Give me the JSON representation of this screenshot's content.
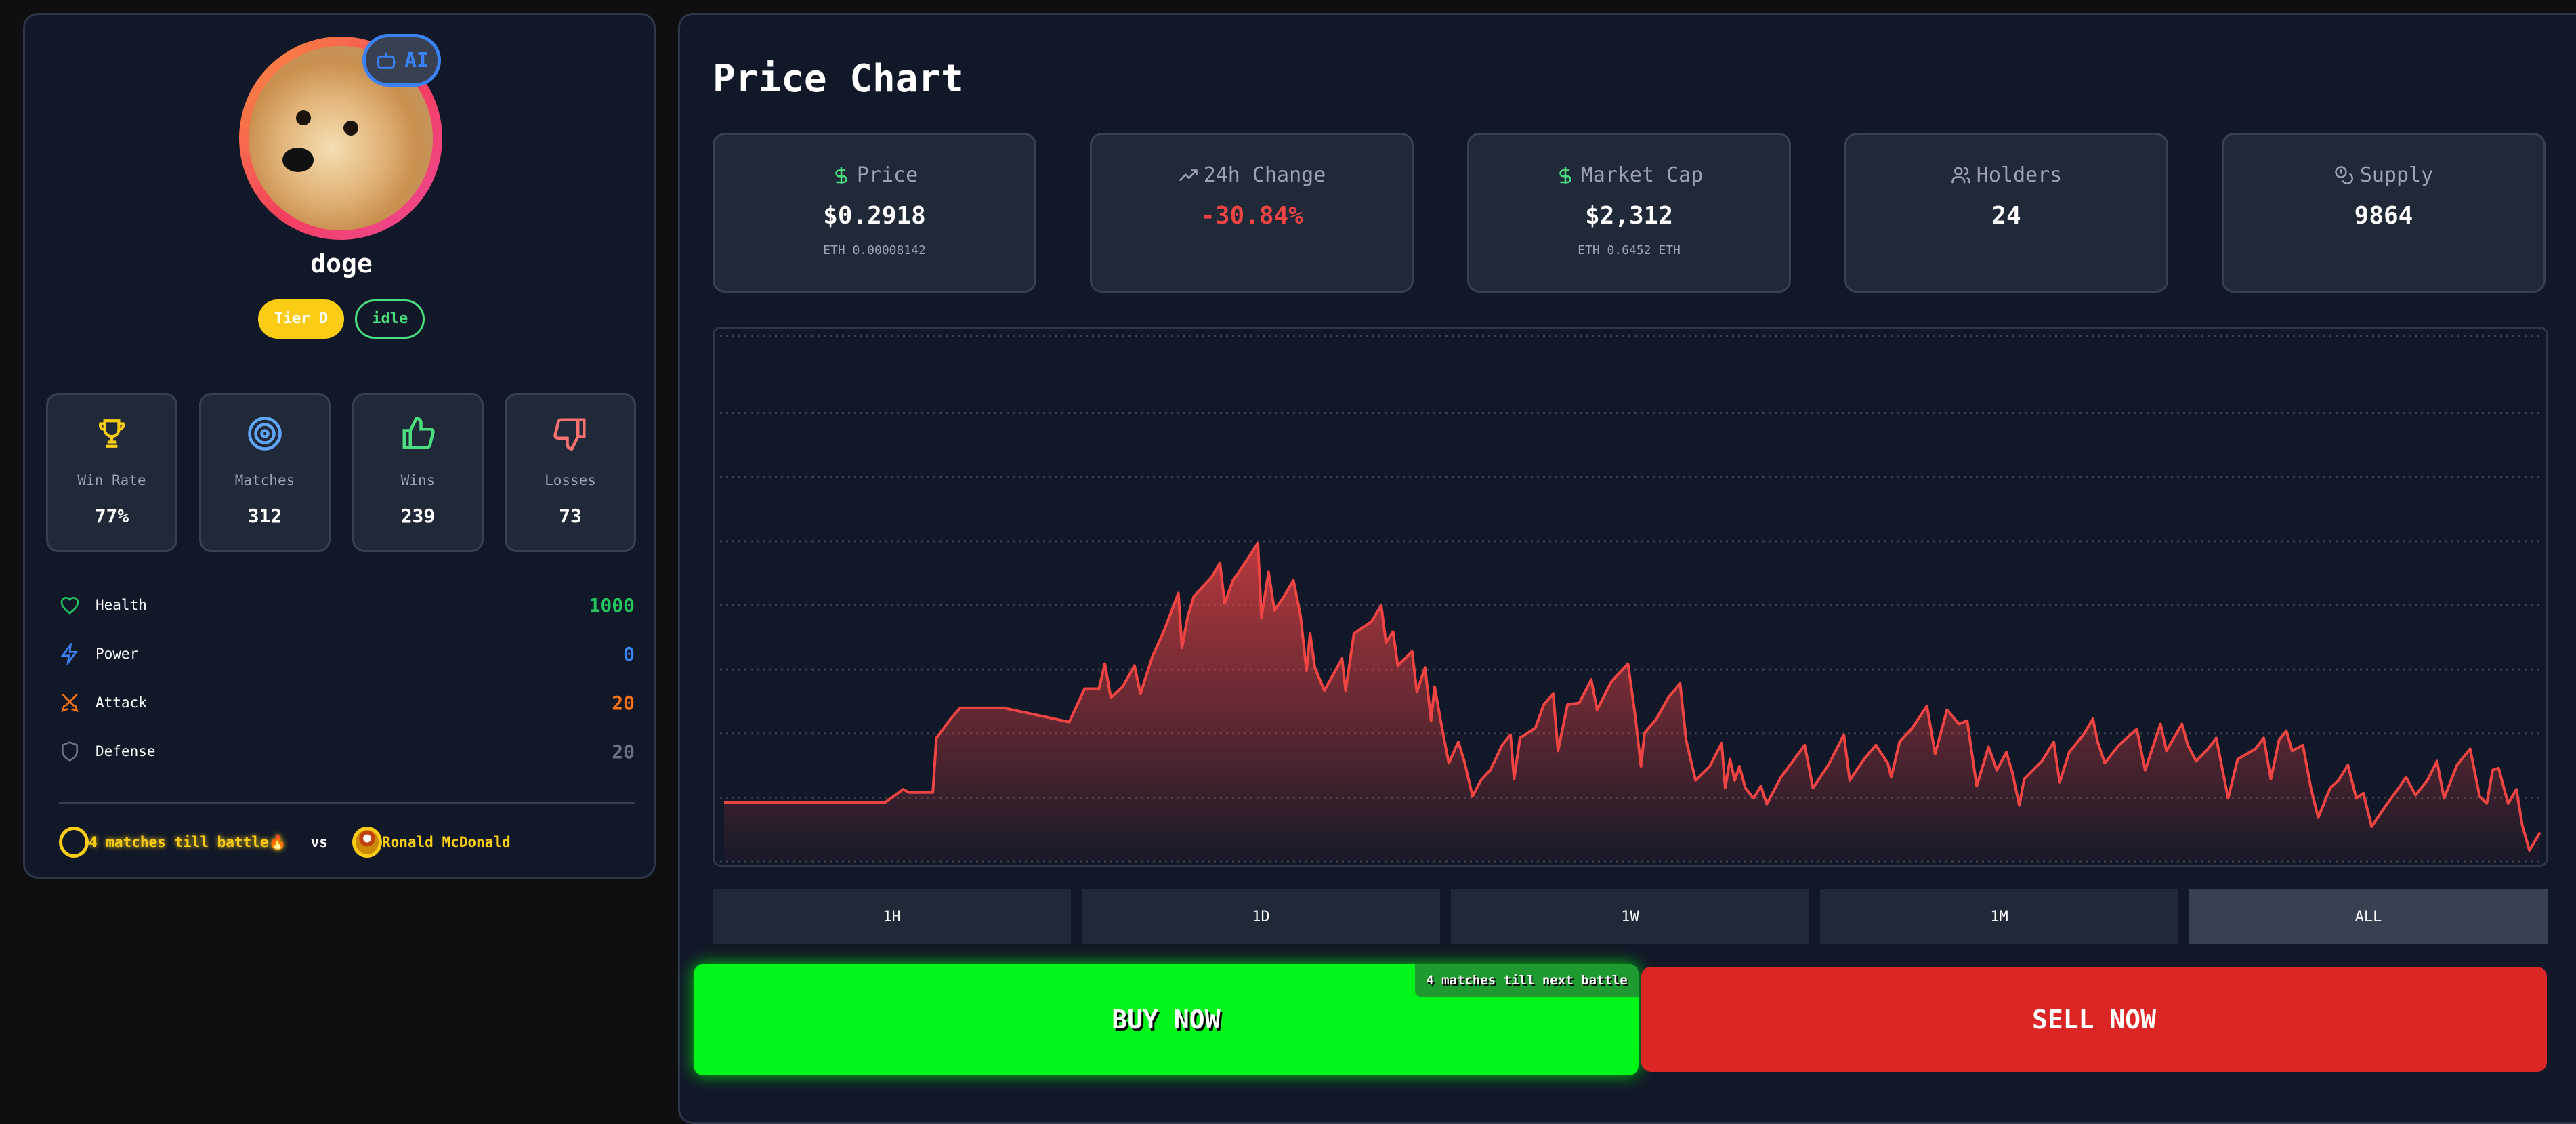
{
  "profile": {
    "name": "doge",
    "ai_badge": "AI",
    "tier": "Tier D",
    "status": "idle"
  },
  "stats": [
    {
      "label": "Win Rate",
      "value": "77%",
      "icon": "trophy-icon",
      "color": "#facc15"
    },
    {
      "label": "Matches",
      "value": "312",
      "icon": "target-icon",
      "color": "#60a5fa"
    },
    {
      "label": "Wins",
      "value": "239",
      "icon": "thumbs-up-icon",
      "color": "#4ade80"
    },
    {
      "label": "Losses",
      "value": "73",
      "icon": "thumbs-down-icon",
      "color": "#f87171"
    }
  ],
  "attributes": [
    {
      "label": "Health",
      "value": "1000",
      "icon": "heart-icon",
      "color": "#22c55e"
    },
    {
      "label": "Power",
      "value": "0",
      "icon": "lightning-icon",
      "color": "#3b82f6"
    },
    {
      "label": "Attack",
      "value": "20",
      "icon": "swords-icon",
      "color": "#f97316"
    },
    {
      "label": "Defense",
      "value": "20",
      "icon": "shield-icon",
      "color": "#6b7280"
    }
  ],
  "battle": {
    "countdown": "4 matches till battle🔥",
    "vs": "vs",
    "opponent": "Ronald McDonald"
  },
  "chart_panel": {
    "title": "Price Chart"
  },
  "metrics": [
    {
      "label": "Price",
      "value": "$0.2918",
      "sub": "ETH 0.00008142",
      "icon": "dollar-icon",
      "color": "#fff"
    },
    {
      "label": "24h Change",
      "value": "-30.84%",
      "sub": "",
      "icon": "trending-up-icon",
      "color": "#ef4444"
    },
    {
      "label": "Market Cap",
      "value": "$2,312",
      "sub": "ETH 0.6452 ETH",
      "icon": "dollar-icon",
      "color": "#fff"
    },
    {
      "label": "Holders",
      "value": "24",
      "sub": "",
      "icon": "users-icon",
      "color": "#fff"
    },
    {
      "label": "Supply",
      "value": "9864",
      "sub": "",
      "icon": "coins-icon",
      "color": "#fff"
    }
  ],
  "timeframes": [
    "1H",
    "1D",
    "1W",
    "1M",
    "ALL"
  ],
  "active_timeframe": "ALL",
  "actions": {
    "buy": "BUY NOW",
    "sell": "SELL NOW",
    "next_battle": "4 matches till next battle"
  },
  "chart_data": {
    "type": "area",
    "title": "",
    "xlabel": "",
    "ylabel": "",
    "grid": true,
    "ylim": [
      0,
      8.2
    ],
    "color": "#ef4444",
    "x": [
      0,
      136,
      151,
      156,
      176,
      179,
      191,
      199,
      236,
      291,
      304,
      316,
      321,
      326,
      336,
      346,
      351,
      361,
      371,
      383,
      386,
      391,
      396,
      411,
      418,
      422,
      429,
      434,
      450,
      453,
      459,
      464,
      471,
      480,
      486,
      491,
      494,
      498,
      506,
      521,
      524,
      531,
      546,
      554,
      558,
      564,
      568,
      580,
      584,
      591,
      596,
      599,
      606,
      611,
      619,
      624,
      631,
      638,
      646,
      656,
      663,
      666,
      671,
      684,
      691,
      699,
      703,
      711,
      721,
      731,
      736,
      748,
      762,
      768,
      773,
      776,
      786,
      796,
      806,
      811,
      819,
      831,
      841,
      844,
      848,
      852,
      856,
      861,
      868,
      874,
      879,
      891,
      901,
      911,
      918,
      931,
      944,
      949,
      961,
      971,
      981,
      984,
      991,
      1001,
      1014,
      1021,
      1031,
      1041,
      1048,
      1056,
      1066,
      1073,
      1081,
      1086,
      1092,
      1096,
      1111,
      1121,
      1126,
      1134,
      1146,
      1154,
      1158,
      1164,
      1176,
      1191,
      1198,
      1211,
      1216,
      1229,
      1234,
      1241,
      1251,
      1258,
      1268,
      1276,
      1291,
      1298,
      1304,
      1311,
      1317,
      1322,
      1331,
      1338,
      1344,
      1354,
      1361,
      1369,
      1376,
      1382,
      1389,
      1401,
      1411,
      1418,
      1426,
      1436,
      1444,
      1450,
      1461,
      1472,
      1480,
      1486,
      1491,
      1496,
      1504,
      1511,
      1516,
      1522,
      1531
    ],
    "values": [
      0.93,
      0.93,
      1.13,
      1.08,
      1.08,
      1.93,
      2.23,
      2.4,
      2.4,
      2.18,
      2.7,
      2.7,
      3.09,
      2.56,
      2.73,
      3.06,
      2.62,
      3.2,
      3.61,
      4.19,
      3.34,
      3.83,
      4.14,
      4.44,
      4.66,
      4.03,
      4.39,
      4.52,
      4.97,
      3.81,
      4.52,
      3.92,
      4.11,
      4.39,
      3.83,
      2.98,
      3.56,
      3.03,
      2.67,
      3.17,
      2.67,
      3.56,
      3.75,
      4.0,
      3.42,
      3.59,
      3.06,
      3.28,
      2.65,
      3.03,
      2.2,
      2.73,
      2.01,
      1.54,
      1.87,
      1.57,
      1.02,
      1.27,
      1.43,
      1.82,
      1.98,
      1.29,
      1.93,
      2.09,
      2.45,
      2.62,
      1.73,
      2.45,
      2.48,
      2.84,
      2.37,
      2.81,
      3.09,
      2.29,
      1.49,
      2.01,
      2.23,
      2.56,
      2.78,
      1.9,
      1.27,
      1.49,
      1.85,
      1.15,
      1.6,
      1.27,
      1.49,
      1.15,
      0.99,
      1.18,
      0.9,
      1.32,
      1.57,
      1.82,
      1.15,
      1.51,
      1.98,
      1.27,
      1.6,
      1.82,
      1.54,
      1.32,
      1.87,
      2.07,
      2.43,
      1.68,
      2.37,
      2.15,
      2.2,
      1.18,
      1.79,
      1.43,
      1.71,
      1.4,
      0.88,
      1.29,
      1.57,
      1.87,
      1.24,
      1.71,
      1.98,
      2.23,
      1.87,
      1.54,
      1.82,
      2.07,
      1.43,
      2.15,
      1.73,
      2.15,
      1.82,
      1.57,
      1.76,
      1.93,
      0.99,
      1.6,
      1.76,
      1.93,
      1.29,
      1.9,
      2.04,
      1.73,
      1.82,
      1.13,
      0.69,
      1.15,
      1.27,
      1.51,
      0.99,
      1.07,
      0.55,
      0.88,
      1.13,
      1.32,
      1.04,
      1.27,
      1.57,
      0.99,
      1.51,
      1.76,
      1.02,
      0.91,
      1.43,
      1.46,
      0.91,
      1.13,
      0.57,
      0.18,
      0.46
    ]
  }
}
